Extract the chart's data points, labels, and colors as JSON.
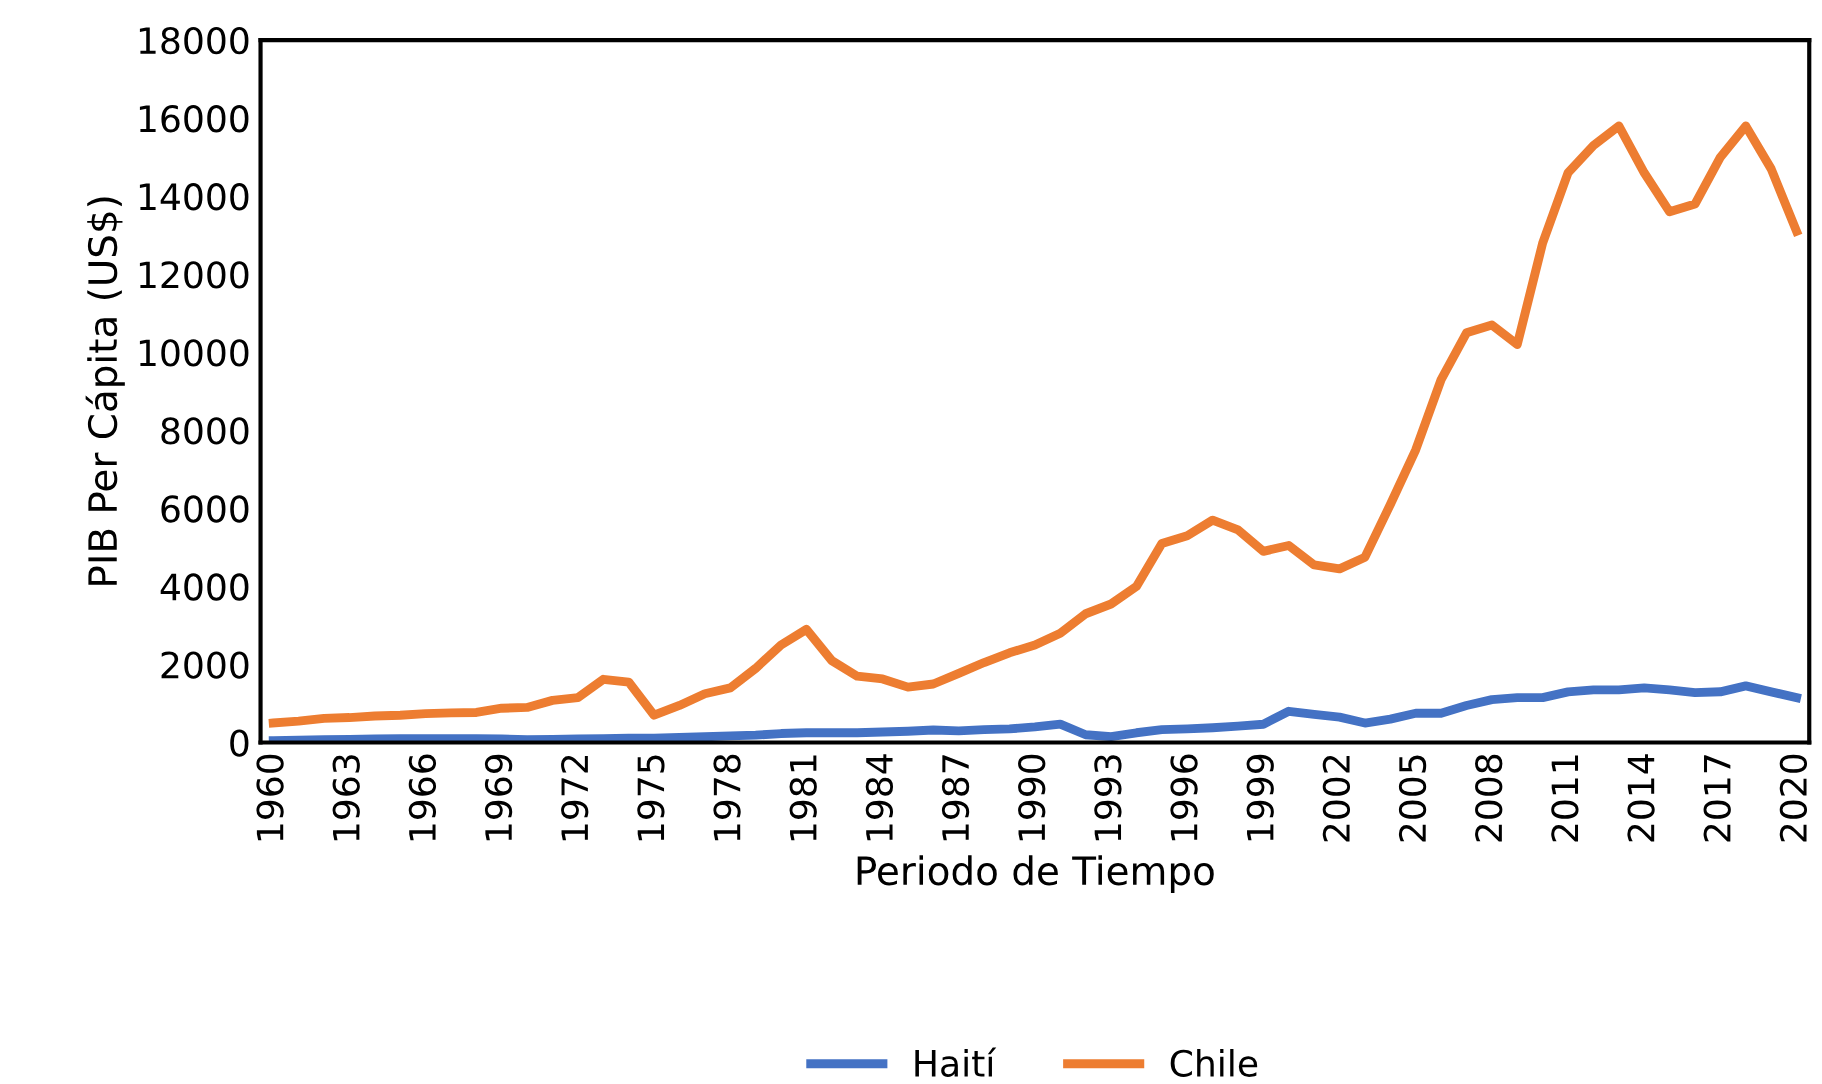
{
  "chart_data": {
    "type": "line",
    "xlabel": "Periodo de Tiempo",
    "ylabel": "PIB Per Cápita (US$)",
    "categories": [
      "1960",
      null,
      null,
      "1963",
      null,
      null,
      "1966",
      null,
      null,
      "1969",
      null,
      null,
      "1972",
      null,
      null,
      "1975",
      null,
      null,
      "1978",
      null,
      null,
      "1981",
      null,
      null,
      "1984",
      null,
      null,
      "1987",
      null,
      null,
      "1990",
      null,
      null,
      "1993",
      null,
      null,
      "1996",
      null,
      null,
      "1999",
      null,
      null,
      "2002",
      null,
      null,
      "2005",
      null,
      null,
      "2008",
      null,
      null,
      "2011",
      null,
      null,
      "2014",
      null,
      null,
      "2017",
      null,
      null,
      "2020"
    ],
    "series": [
      {
        "name": "Haití",
        "color": "#4472c4",
        "values": [
          50,
          60,
          70,
          80,
          90,
          100,
          100,
          100,
          100,
          90,
          70,
          80,
          90,
          100,
          110,
          110,
          130,
          150,
          170,
          190,
          230,
          250,
          250,
          250,
          270,
          290,
          320,
          300,
          330,
          350,
          400,
          470,
          200,
          150,
          250,
          330,
          350,
          380,
          420,
          470,
          800,
          720,
          650,
          500,
          600,
          750,
          750,
          950,
          1100,
          1150,
          1150,
          1300,
          1350,
          1350,
          1400,
          1350,
          1280,
          1300,
          1450,
          1300,
          1150
        ]
      },
      {
        "name": "Chile",
        "color": "#ed7d31",
        "values": [
          500,
          550,
          620,
          640,
          680,
          700,
          740,
          760,
          770,
          880,
          900,
          1080,
          1150,
          1620,
          1550,
          700,
          950,
          1250,
          1400,
          1900,
          2500,
          2900,
          2100,
          1700,
          1630,
          1420,
          1500,
          1770,
          2050,
          2300,
          2500,
          2800,
          3300,
          3550,
          4000,
          5100,
          5300,
          5700,
          5450,
          4900,
          5050,
          4550,
          4450,
          4750,
          6100,
          7500,
          9300,
          10500,
          10700,
          10200,
          12800,
          14600,
          15300,
          15800,
          14600,
          13600,
          13800,
          15000,
          15800,
          14700,
          13100
        ]
      }
    ],
    "ylim": [
      0,
      18000
    ],
    "yticks": [
      0,
      2000,
      4000,
      6000,
      8000,
      10000,
      12000,
      14000,
      16000,
      18000
    ],
    "legend": "bottom",
    "marker": "none",
    "line_style": "solid"
  }
}
